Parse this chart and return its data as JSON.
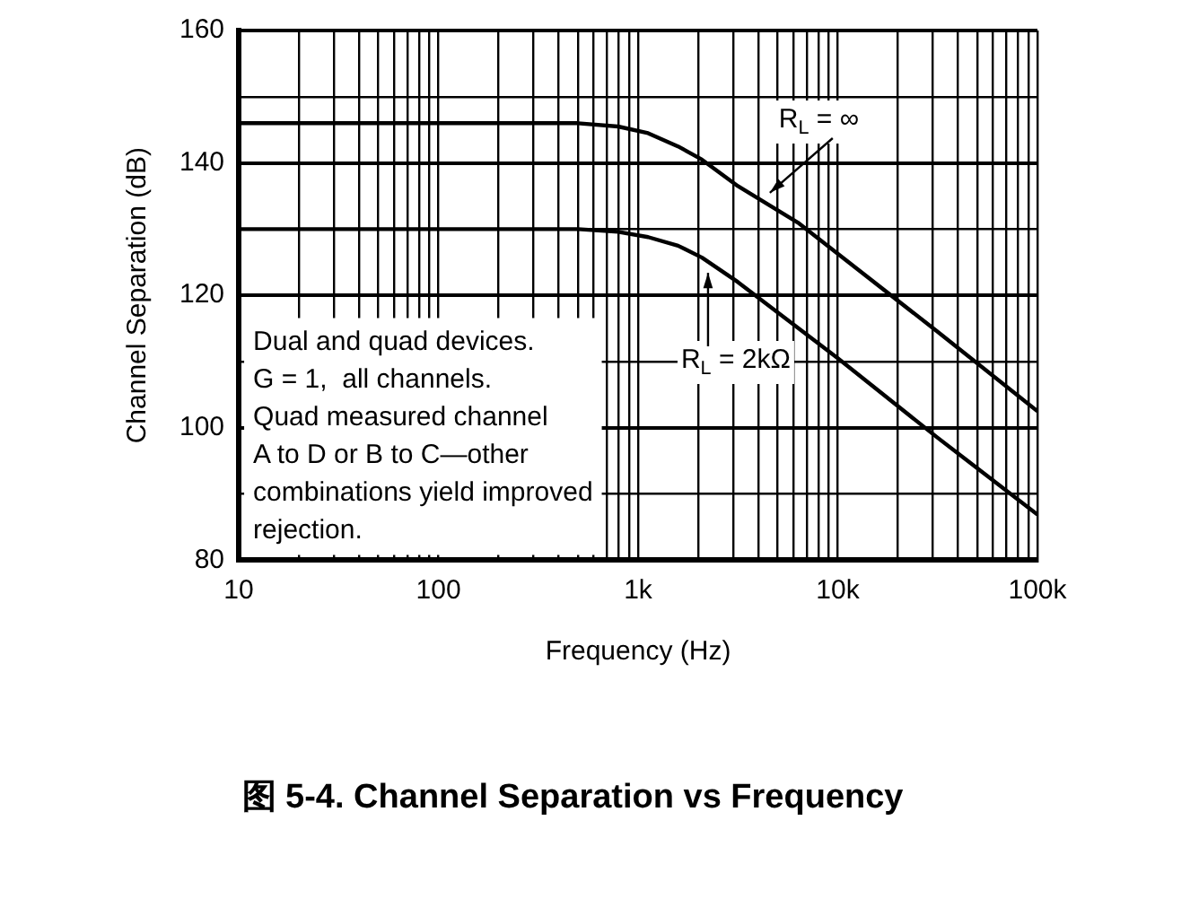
{
  "chart_data": {
    "type": "line",
    "title": "图 5-4. Channel Separation vs Frequency",
    "xlabel": "Frequency (Hz)",
    "ylabel": "Channel Separation (dB)",
    "log": "x",
    "grid": true,
    "legend": false,
    "marker": "none",
    "line_style": "solid",
    "xlim": [
      10,
      100000
    ],
    "xticks": [
      10,
      {
        "value": 20,
        "label": null
      },
      {
        "value": 30,
        "label": null
      },
      {
        "value": 40,
        "label": null
      },
      {
        "value": 50,
        "label": null
      },
      {
        "value": 60,
        "label": null
      },
      {
        "value": 70,
        "label": null
      },
      {
        "value": 80,
        "label": null
      },
      {
        "value": 90,
        "label": null
      },
      100,
      {
        "value": 200,
        "label": null
      },
      {
        "value": 300,
        "label": null
      },
      {
        "value": 400,
        "label": null
      },
      {
        "value": 500,
        "label": null
      },
      {
        "value": 600,
        "label": null
      },
      {
        "value": 700,
        "label": null
      },
      {
        "value": 800,
        "label": null
      },
      {
        "value": 900,
        "label": null
      },
      {
        "value": 1000,
        "label": "1k"
      },
      {
        "value": 2000,
        "label": null
      },
      {
        "value": 3000,
        "label": null
      },
      {
        "value": 4000,
        "label": null
      },
      {
        "value": 5000,
        "label": null
      },
      {
        "value": 6000,
        "label": null
      },
      {
        "value": 7000,
        "label": null
      },
      {
        "value": 8000,
        "label": null
      },
      {
        "value": 9000,
        "label": null
      },
      {
        "value": 10000,
        "label": "10k"
      },
      {
        "value": 20000,
        "label": null
      },
      {
        "value": 30000,
        "label": null
      },
      {
        "value": 40000,
        "label": null
      },
      {
        "value": 50000,
        "label": null
      },
      {
        "value": 60000,
        "label": null
      },
      {
        "value": 70000,
        "label": null
      },
      {
        "value": 80000,
        "label": null
      },
      {
        "value": 90000,
        "label": null
      },
      {
        "value": 100000,
        "label": "100k"
      }
    ],
    "ylim": [
      80,
      160
    ],
    "yticks": [
      80,
      {
        "value": 90,
        "label": null
      },
      100,
      {
        "value": 110,
        "label": null
      },
      120,
      {
        "value": 130,
        "label": null
      },
      140,
      {
        "value": 150,
        "label": null
      },
      160
    ],
    "series": [
      {
        "color": "#000000",
        "x": [
          10,
          500,
          794,
          1122,
          1585,
          2089,
          3162,
          6310,
          31623,
          100000
        ],
        "values": [
          146,
          146,
          145.5,
          144.5,
          142.5,
          140.5,
          136.5,
          131,
          114.5,
          102.5
        ]
      },
      {
        "color": "#000000",
        "x": [
          10,
          500,
          794,
          1122,
          1585,
          2089,
          3162,
          10000,
          31623,
          100000
        ],
        "values": [
          130,
          130,
          129.6,
          128.8,
          127.5,
          125.7,
          122,
          110.5,
          98.5,
          86.9
        ]
      }
    ],
    "annotations": [
      {
        "text": "R$_{L}$ = ∞",
        "x": 4570,
        "y": 135.5
      },
      {
        "text": "R$_{L}$ = 2kΩ",
        "x": 2240,
        "y": 123.4
      },
      "Dual and quad devices.\nG = 1,  all channels.\nQuad measured channel\nA to D or B to C—other\ncombinations yield improved\nrejection."
    ]
  }
}
